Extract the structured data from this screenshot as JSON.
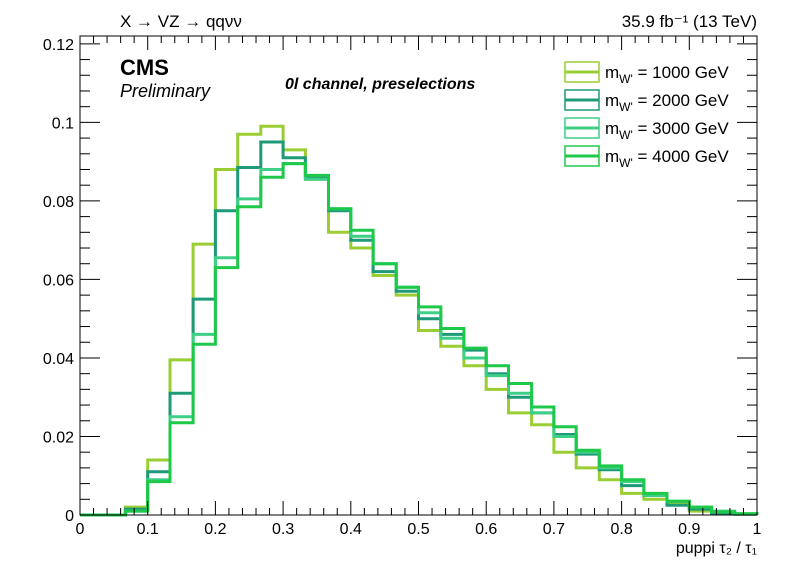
{
  "chart_data": {
    "type": "line",
    "style": "step histogram",
    "title_left": "X → VZ → qqνν",
    "title_right": "35.9 fb⁻¹ (13 TeV)",
    "experiment": "CMS",
    "status": "Preliminary",
    "annotation": "0l channel, preselections",
    "xlabel": "puppi τ₂ / τ₁",
    "ylabel": "",
    "xlim": [
      0,
      1
    ],
    "ylim": [
      0,
      0.122
    ],
    "x_ticks": [
      "0",
      "0.1",
      "0.2",
      "0.3",
      "0.4",
      "0.5",
      "0.6",
      "0.7",
      "0.8",
      "0.9",
      "1"
    ],
    "y_ticks": [
      "0",
      "0.02",
      "0.04",
      "0.06",
      "0.08",
      "0.1",
      "0.12"
    ],
    "grid": false,
    "legend_position": "top-right",
    "bin_edges": [
      0,
      0.033,
      0.067,
      0.1,
      0.133,
      0.167,
      0.2,
      0.233,
      0.267,
      0.3,
      0.333,
      0.367,
      0.4,
      0.433,
      0.467,
      0.5,
      0.533,
      0.567,
      0.6,
      0.633,
      0.667,
      0.7,
      0.733,
      0.767,
      0.8,
      0.833,
      0.867,
      0.9,
      0.933,
      0.967,
      1.0
    ],
    "series": [
      {
        "name": "m_W' = 1000 GeV",
        "mass_label": "m",
        "mass_sub": "W'",
        "mass_value": " = 1000 GeV",
        "color": "#9acd32",
        "values": [
          0,
          0,
          0.002,
          0.014,
          0.0395,
          0.069,
          0.088,
          0.097,
          0.099,
          0.093,
          0.0855,
          0.072,
          0.068,
          0.061,
          0.056,
          0.047,
          0.043,
          0.038,
          0.032,
          0.026,
          0.023,
          0.016,
          0.012,
          0.009,
          0.0055,
          0.004,
          0.003,
          0.001,
          0.0005,
          0.0003
        ]
      },
      {
        "name": "m_W' = 2000 GeV",
        "mass_label": "m",
        "mass_sub": "W'",
        "mass_value": " = 2000 GeV",
        "color": "#1f9a78",
        "values": [
          0,
          0,
          0.0015,
          0.011,
          0.031,
          0.055,
          0.0775,
          0.0885,
          0.095,
          0.091,
          0.086,
          0.0775,
          0.07,
          0.062,
          0.057,
          0.05,
          0.046,
          0.042,
          0.036,
          0.03,
          0.026,
          0.0205,
          0.0155,
          0.0115,
          0.0075,
          0.005,
          0.0025,
          0.0015,
          0.0005,
          0.0002
        ]
      },
      {
        "name": "m_W' = 3000 GeV",
        "mass_label": "m",
        "mass_sub": "W'",
        "mass_value": " = 3000 GeV",
        "color": "#3ecf86",
        "values": [
          0,
          0,
          0.001,
          0.009,
          0.025,
          0.046,
          0.0655,
          0.0805,
          0.088,
          0.0895,
          0.0855,
          0.078,
          0.071,
          0.064,
          0.058,
          0.0515,
          0.045,
          0.04,
          0.0355,
          0.031,
          0.026,
          0.02,
          0.016,
          0.012,
          0.0085,
          0.005,
          0.0035,
          0.002,
          0.001,
          0.0003
        ]
      },
      {
        "name": "m_W' = 4000 GeV",
        "mass_label": "m",
        "mass_sub": "W'",
        "mass_value": " = 4000 GeV",
        "color": "#1ec94a",
        "values": [
          0,
          0,
          0.001,
          0.0085,
          0.0235,
          0.0435,
          0.063,
          0.0785,
          0.086,
          0.0895,
          0.0865,
          0.078,
          0.0725,
          0.064,
          0.058,
          0.053,
          0.0475,
          0.0425,
          0.038,
          0.0335,
          0.0275,
          0.0225,
          0.0165,
          0.0125,
          0.009,
          0.0055,
          0.0035,
          0.002,
          0.0008,
          0.0003
        ]
      }
    ]
  }
}
